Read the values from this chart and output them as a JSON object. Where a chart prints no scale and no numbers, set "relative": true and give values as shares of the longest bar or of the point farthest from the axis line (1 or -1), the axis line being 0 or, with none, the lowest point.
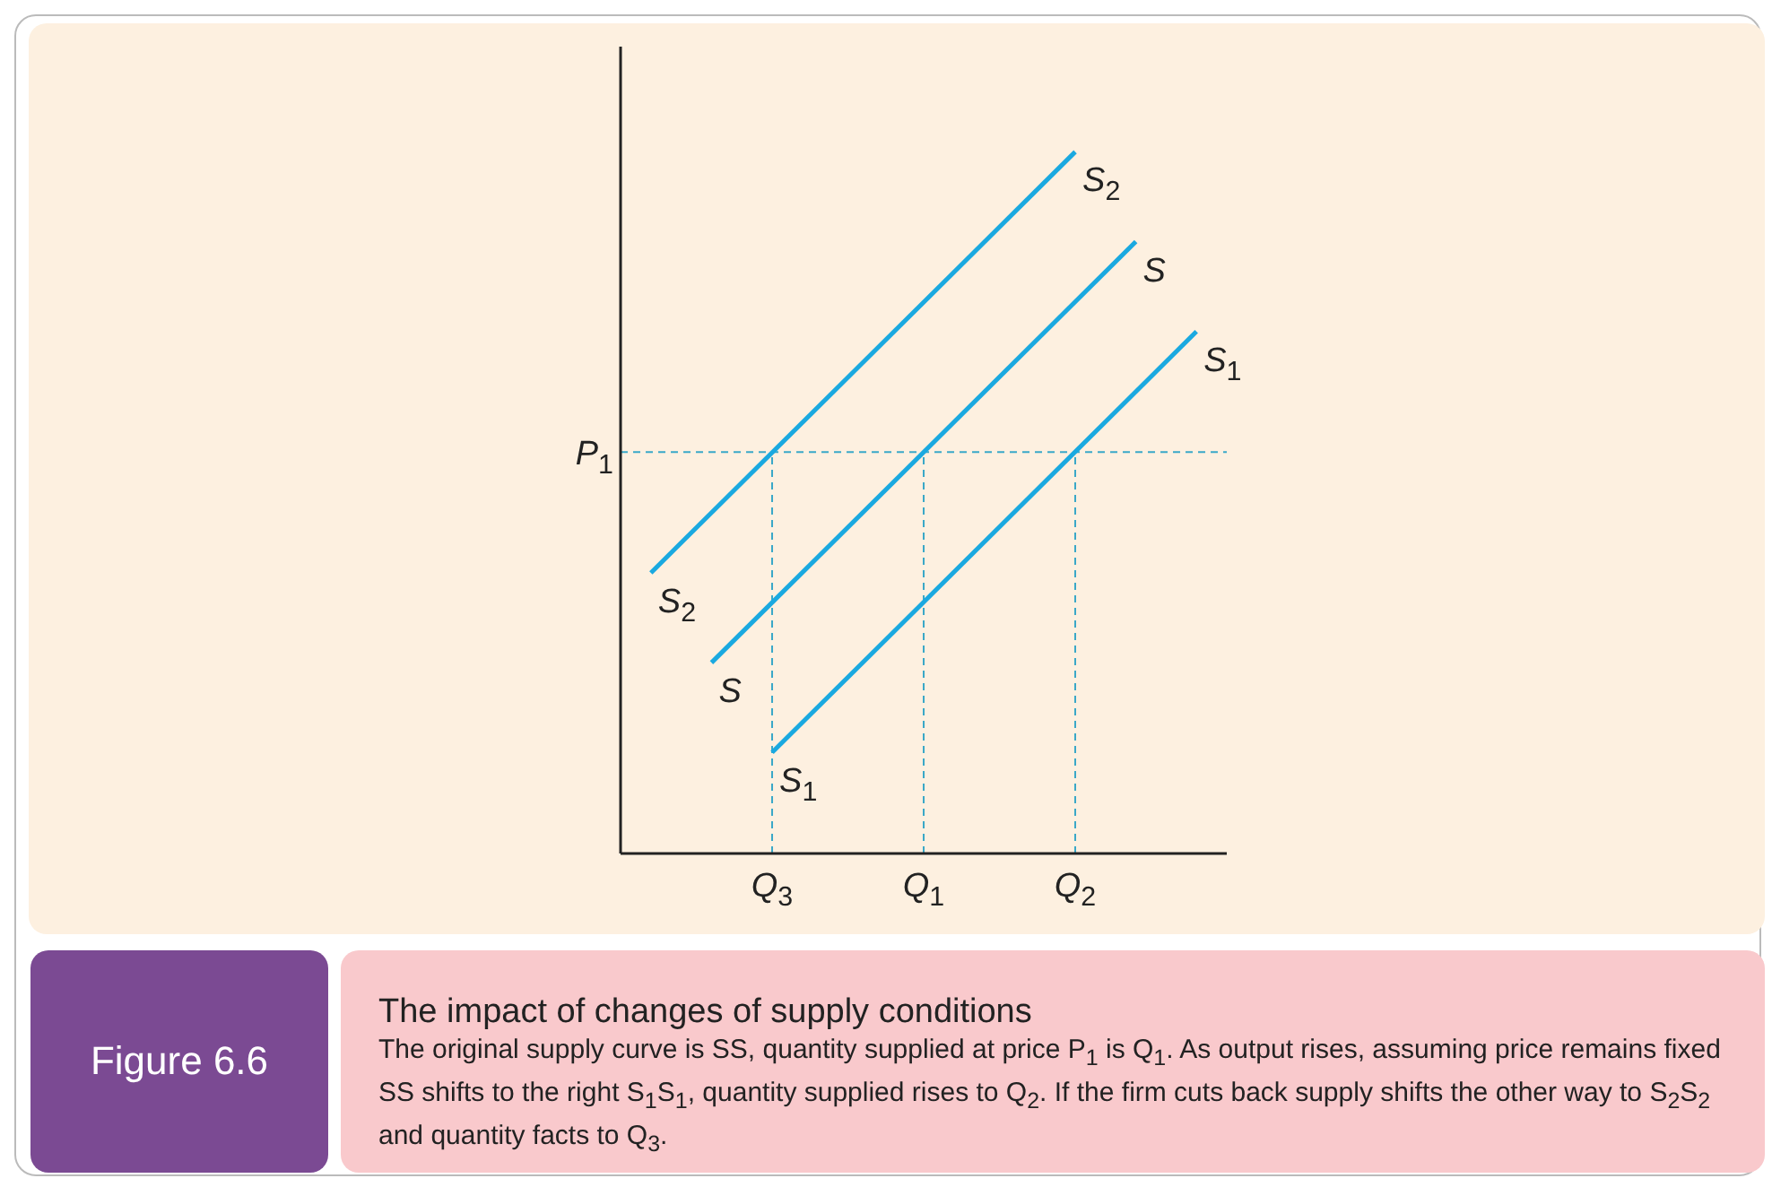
{
  "chart_data": {
    "type": "line",
    "title": "The impact of changes of supply conditions",
    "annotations": [
      "Figure 6.6",
      "The original supply curve is SS, quantity supplied at price P$_{1}$ is Q$_{1}$. As output rises, assuming price remains fixed SS shifts to the right S$_{1}$S$_{1}$, quantity supplied rises to Q$_{2}$. If the firm cuts back supply shifts the other way to S$_{2}$S$_{2}$ and quantity facts to Q$_{3}$."
    ],
    "relative": true,
    "categories": [
      null,
      null,
      null,
      null,
      null,
      "Q$_{3}$",
      null,
      null,
      null,
      null,
      "Q$_{1}$",
      null,
      null,
      null,
      null,
      "Q$_{2}$",
      null,
      null,
      null,
      null,
      null
    ],
    "series": [
      {
        "name": "S$_{2}$",
        "color": "#1aa9e0",
        "values": [
          null,
          0.4,
          null,
          null,
          null,
          null,
          null,
          null,
          null,
          null,
          null,
          null,
          null,
          null,
          null,
          1,
          null,
          null,
          null,
          null,
          null
        ]
      },
      {
        "name": "S",
        "color": "#1aa9e0",
        "values": [
          null,
          null,
          null,
          0.272,
          null,
          null,
          null,
          null,
          null,
          null,
          null,
          null,
          null,
          null,
          null,
          null,
          null,
          0.872,
          null,
          null,
          null
        ]
      },
      {
        "name": "S$_{1}$",
        "color": "#1aa9e0",
        "values": [
          null,
          null,
          null,
          null,
          null,
          0.144,
          null,
          null,
          null,
          null,
          null,
          null,
          null,
          null,
          null,
          null,
          null,
          null,
          null,
          0.744,
          null
        ]
      }
    ],
    "ref_lines": [
      {
        "axis": "y",
        "value": 0.572,
        "label": "P$_{1}$",
        "color": "#3aa8c8",
        "line_style": "dashed"
      },
      {
        "axis": "x",
        "value": "Q$_{3}$",
        "color": "#3aa8c8",
        "line_style": "dashed"
      },
      {
        "axis": "x",
        "value": "Q$_{1}$",
        "color": "#3aa8c8",
        "line_style": "dashed"
      },
      {
        "axis": "x",
        "value": "Q$_{2}$",
        "color": "#3aa8c8",
        "line_style": "dashed"
      }
    ],
    "grid": false,
    "legend": false,
    "marker": "none",
    "line_style": "solid"
  }
}
